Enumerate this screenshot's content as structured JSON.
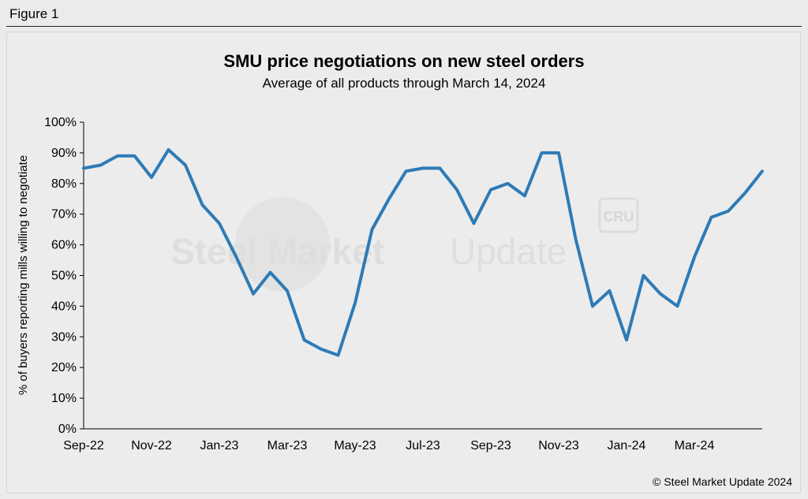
{
  "figure_label": "Figure 1",
  "credit": "© Steel Market Update 2024",
  "watermark": {
    "brand_bold": "Steel Market",
    "brand_light": "Update",
    "badge": "CRU"
  },
  "colors": {
    "line": "#2e7bb6",
    "axis": "#000000",
    "background": "#ececec"
  },
  "chart_data": {
    "type": "line",
    "title": "SMU price negotiations on new steel orders",
    "subtitle": "Average of all products through March 14, 2024",
    "ylabel": "% of buyers reporting mills willing to negotiate",
    "xlabel": "",
    "ylim": [
      0,
      100
    ],
    "y_ticks": [
      "0%",
      "10%",
      "20%",
      "30%",
      "40%",
      "50%",
      "60%",
      "70%",
      "80%",
      "90%",
      "100%"
    ],
    "x_tick_labels": [
      "Sep-22",
      "Nov-22",
      "Jan-23",
      "Mar-23",
      "May-23",
      "Jul-23",
      "Sep-23",
      "Nov-23",
      "Jan-24",
      "Mar-24"
    ],
    "x_tick_positions": [
      0,
      4,
      8,
      12,
      16,
      20,
      24,
      28,
      32,
      36
    ],
    "series": [
      {
        "name": "SMU price negotiations",
        "values": [
          85,
          86,
          89,
          89,
          82,
          91,
          86,
          73,
          67,
          56,
          44,
          51,
          45,
          29,
          26,
          24,
          41,
          65,
          75,
          84,
          85,
          85,
          78,
          67,
          78,
          80,
          76,
          90,
          90,
          62,
          40,
          45,
          29,
          50,
          44,
          40,
          56,
          69,
          71,
          77,
          84
        ]
      }
    ]
  }
}
